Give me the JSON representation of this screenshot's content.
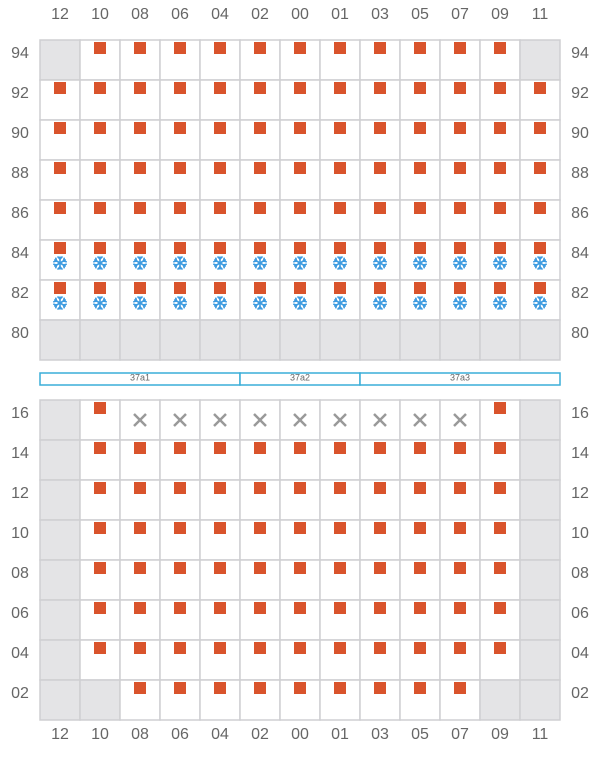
{
  "columns": [
    "12",
    "10",
    "08",
    "06",
    "04",
    "02",
    "00",
    "01",
    "03",
    "05",
    "07",
    "09",
    "11"
  ],
  "upper_rows": [
    "94",
    "92",
    "90",
    "88",
    "86",
    "84",
    "82",
    "80"
  ],
  "segments": [
    "37a1",
    "37a2",
    "37a3"
  ],
  "lower_rows": [
    "16",
    "14",
    "12",
    "10",
    "08",
    "06",
    "04",
    "02"
  ]
}
